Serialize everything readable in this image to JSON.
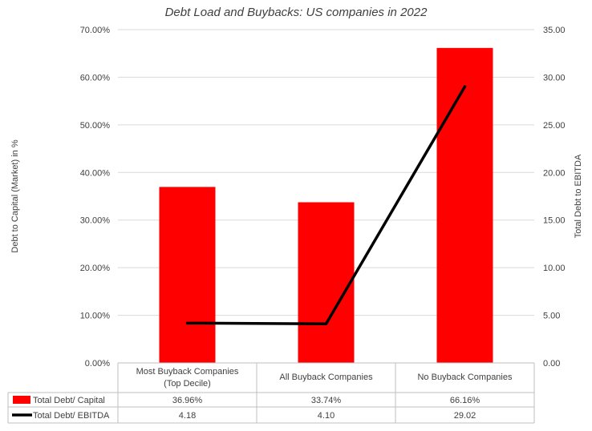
{
  "chart_data": {
    "type": "bar",
    "title": "Debt Load and Buybacks: US companies in 2022",
    "ylabel": "Debt to Capital (Market) in %",
    "y2label": "Total Debt to EBITDA",
    "categories": [
      [
        "Most Buyback Companies",
        "(Top Decile)"
      ],
      [
        "All Buyback Companies"
      ],
      [
        "No Buyback Companies"
      ]
    ],
    "ylim": [
      0,
      0.7
    ],
    "y2lim": [
      0,
      35
    ],
    "yticks": [
      "0.00%",
      "10.00%",
      "20.00%",
      "30.00%",
      "40.00%",
      "50.00%",
      "60.00%",
      "70.00%"
    ],
    "y2ticks": [
      "0.00",
      "5.00",
      "10.00",
      "15.00",
      "20.00",
      "25.00",
      "30.00",
      "35.00"
    ],
    "series": [
      {
        "name": "Total Debt/ Capital",
        "type": "bar",
        "axis": "left",
        "color": "#ff0000",
        "values": [
          0.3696,
          0.3374,
          0.6616
        ],
        "labels": [
          "36.96%",
          "33.74%",
          "66.16%"
        ]
      },
      {
        "name": "Total Debt/ EBITDA",
        "type": "line",
        "axis": "right",
        "color": "#000000",
        "values": [
          4.18,
          4.1,
          29.02
        ],
        "labels": [
          "4.18",
          "4.10",
          "29.02"
        ]
      }
    ],
    "grid": true,
    "legend": "data-table-bottom"
  }
}
